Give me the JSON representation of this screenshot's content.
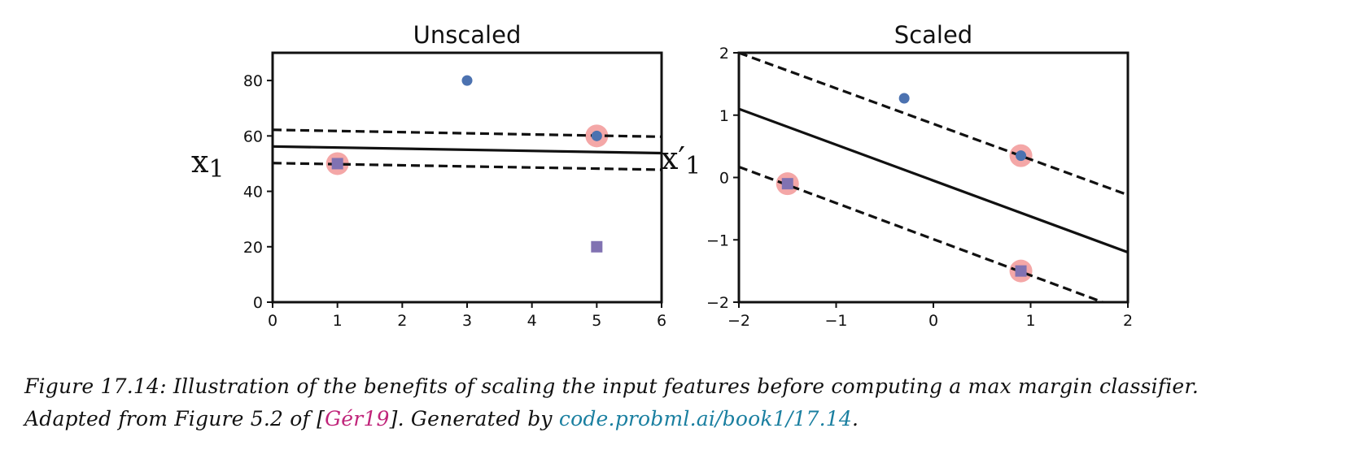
{
  "chart_data": [
    {
      "type": "scatter",
      "title": "Unscaled",
      "xlabel": "",
      "ylabel": "x",
      "ylabel_sub": "1",
      "xlim": [
        0,
        6
      ],
      "ylim": [
        0,
        90
      ],
      "xticks": [
        0,
        1,
        2,
        3,
        4,
        5,
        6
      ],
      "yticks": [
        0,
        20,
        40,
        60,
        80
      ],
      "grid": false,
      "series": [
        {
          "marker": "circle",
          "color": "#4c72b0",
          "points": [
            [
              3,
              80
            ],
            [
              5,
              60
            ]
          ]
        },
        {
          "marker": "square",
          "color": "#8172b2",
          "points": [
            [
              1,
              50
            ],
            [
              5,
              20
            ]
          ]
        }
      ],
      "support_vectors": [
        [
          1,
          50
        ],
        [
          5,
          60
        ]
      ],
      "lines": [
        {
          "style": "solid",
          "from": [
            0,
            56.2
          ],
          "to": [
            6,
            53.8
          ]
        },
        {
          "style": "dashed",
          "from": [
            0,
            62.2
          ],
          "to": [
            6,
            59.7
          ]
        },
        {
          "style": "dashed",
          "from": [
            0,
            50.2
          ],
          "to": [
            6,
            47.8
          ]
        }
      ]
    },
    {
      "type": "scatter",
      "title": "Scaled",
      "xlabel": "",
      "ylabel": "x′",
      "ylabel_sub": "1",
      "xlim": [
        -2,
        2
      ],
      "ylim": [
        -2,
        2
      ],
      "xticks": [
        -2,
        -1,
        0,
        1,
        2
      ],
      "xtick_labels": [
        "−2",
        "−1",
        "0",
        "1",
        "2"
      ],
      "yticks": [
        2,
        1,
        0,
        -1,
        -2
      ],
      "ytick_labels": [
        "2",
        "1",
        "0",
        "−1",
        "−2"
      ],
      "grid": false,
      "series": [
        {
          "marker": "circle",
          "color": "#4c72b0",
          "points": [
            [
              -0.3,
              1.27
            ],
            [
              0.9,
              0.35
            ]
          ]
        },
        {
          "marker": "square",
          "color": "#8172b2",
          "points": [
            [
              -1.5,
              -0.1
            ],
            [
              0.9,
              -1.5
            ]
          ]
        }
      ],
      "support_vectors": [
        [
          -1.5,
          -0.1
        ],
        [
          0.9,
          0.35
        ],
        [
          0.9,
          -1.5
        ]
      ],
      "lines": [
        {
          "style": "solid",
          "from": [
            -2,
            1.1
          ],
          "to": [
            2,
            -1.2
          ]
        },
        {
          "style": "dashed",
          "from": [
            -2,
            2.0
          ],
          "to": [
            2,
            -0.28
          ]
        },
        {
          "style": "dashed",
          "from": [
            -2,
            0.17
          ],
          "to": [
            2,
            -2.15
          ]
        }
      ]
    }
  ],
  "caption": {
    "prefix": "Figure 17.14: Illustration of the benefits of scaling the input features before computing a max margin classifier.",
    "line2_start": "Adapted from Figure 5.2 of [",
    "citation": "Gér19",
    "line2_mid": "]. Generated by ",
    "link": "code.probml.ai/book1/17.14",
    "line2_end": "."
  },
  "colors": {
    "support_highlight": "#f4a7a7",
    "circle": "#4c72b0",
    "square": "#8172b2"
  }
}
